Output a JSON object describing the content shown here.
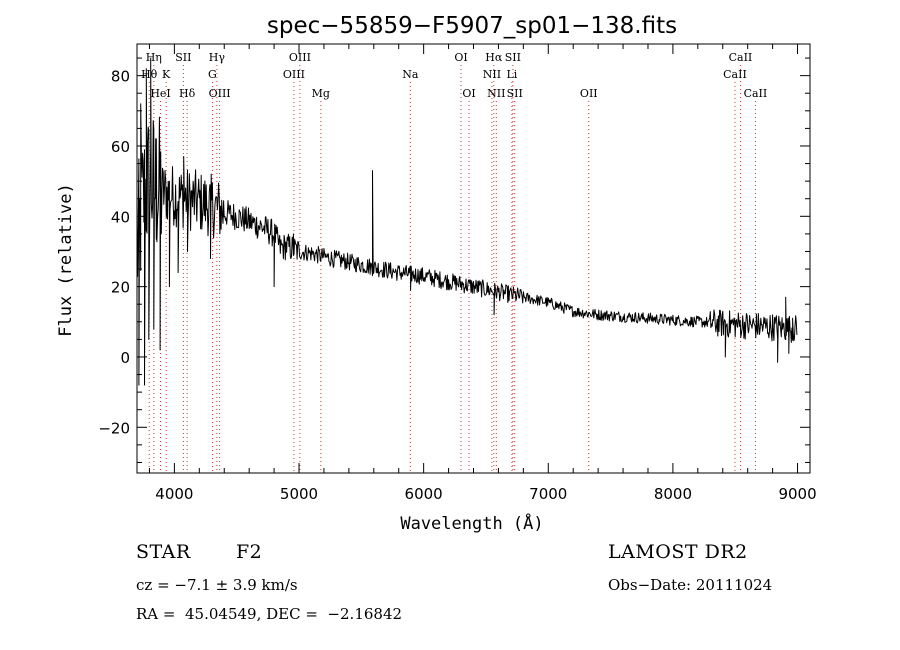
{
  "chart_data": {
    "type": "line",
    "title": "spec−55859−F5907_sp01−138.fits",
    "xlabel": "Wavelength (Å)",
    "ylabel": "Flux (relative)",
    "xlim": [
      3700,
      9100
    ],
    "ylim": [
      -33,
      89
    ],
    "xticks": [
      4000,
      5000,
      6000,
      7000,
      8000,
      9000
    ],
    "yticks": [
      -20,
      0,
      20,
      40,
      60,
      80
    ],
    "ytick_labels": [
      "−20",
      "0",
      "20",
      "40",
      "60",
      "80"
    ],
    "line_color": "#000000",
    "marker_color": "#cc3333",
    "series": [
      {
        "name": "flux",
        "anchors_x": [
          3700,
          3750,
          3800,
          3850,
          3900,
          4000,
          4100,
          4200,
          4300,
          4400,
          4500,
          4600,
          4700,
          4800,
          4850,
          4900,
          5000,
          5100,
          5200,
          5400,
          5600,
          5800,
          6000,
          6200,
          6400,
          6600,
          6800,
          7000,
          7200,
          7400,
          7600,
          7800,
          8000,
          8200,
          8400,
          8600,
          8800,
          8980
        ],
        "anchors_y": [
          30,
          45,
          50,
          48,
          47,
          46,
          45,
          44,
          43,
          41,
          40,
          38.5,
          37,
          35,
          31,
          31.5,
          30,
          29.5,
          28.5,
          27,
          25.5,
          24,
          23,
          21.5,
          20,
          18.5,
          17,
          15.5,
          13,
          12,
          11.5,
          11,
          10.5,
          10,
          9.5,
          9,
          8.5,
          8
        ],
        "features": [
          {
            "x": 3715,
            "y": -8
          },
          {
            "x": 3730,
            "y": 72
          },
          {
            "x": 3760,
            "y": -8
          },
          {
            "x": 3775,
            "y": 82
          },
          {
            "x": 3795,
            "y": 5
          },
          {
            "x": 3810,
            "y": 85
          },
          {
            "x": 3835,
            "y": 8
          },
          {
            "x": 3855,
            "y": 62
          },
          {
            "x": 3885,
            "y": 2
          },
          {
            "x": 3960,
            "y": 20
          },
          {
            "x": 4030,
            "y": 24
          },
          {
            "x": 4075,
            "y": 57
          },
          {
            "x": 4105,
            "y": 30
          },
          {
            "x": 4290,
            "y": 28
          },
          {
            "x": 4800,
            "y": 20
          },
          {
            "x": 4955,
            "y": 35
          },
          {
            "x": 5590,
            "y": 53
          },
          {
            "x": 5895,
            "y": 19
          },
          {
            "x": 6565,
            "y": 12
          },
          {
            "x": 8420,
            "y": 0
          },
          {
            "x": 8840,
            "y": -1.5
          },
          {
            "x": 8905,
            "y": 17
          },
          {
            "x": 8930,
            "y": 1
          },
          {
            "x": 8960,
            "y": 11
          }
        ]
      }
    ],
    "lines": [
      {
        "name": "Hη",
        "wl": 3835,
        "row": 0
      },
      {
        "name": "SII",
        "wl": 4072,
        "row": 0
      },
      {
        "name": "Hγ",
        "wl": 4341,
        "row": 0
      },
      {
        "name": "OIII",
        "wl": 5007,
        "row": 0
      },
      {
        "name": "OI",
        "wl": 6300,
        "row": 0
      },
      {
        "name": "Hα",
        "wl": 6563,
        "row": 0
      },
      {
        "name": "SII",
        "wl": 6716,
        "row": 0
      },
      {
        "name": "CaII",
        "wl": 8542,
        "row": 0
      },
      {
        "name": "Hθ",
        "wl": 3798,
        "row": 1
      },
      {
        "name": "K",
        "wl": 3934,
        "row": 1
      },
      {
        "name": "G",
        "wl": 4305,
        "row": 1
      },
      {
        "name": "OIII",
        "wl": 4959,
        "row": 1
      },
      {
        "name": "Na",
        "wl": 5893,
        "row": 1
      },
      {
        "name": "NII",
        "wl": 6548,
        "row": 1
      },
      {
        "name": "Li",
        "wl": 6708,
        "row": 1
      },
      {
        "name": "CaII",
        "wl": 8498,
        "row": 1
      },
      {
        "name": "HeI",
        "wl": 3889,
        "row": 2
      },
      {
        "name": "Hδ",
        "wl": 4102,
        "row": 2
      },
      {
        "name": "OIII",
        "wl": 4363,
        "row": 2
      },
      {
        "name": "Mg",
        "wl": 5175,
        "row": 2
      },
      {
        "name": "OI",
        "wl": 6364,
        "row": 2
      },
      {
        "name": "NII",
        "wl": 6583,
        "row": 2
      },
      {
        "name": "SII",
        "wl": 6731,
        "row": 2
      },
      {
        "name": "OII",
        "wl": 7325,
        "row": 2
      },
      {
        "name": "CaII",
        "wl": 8662,
        "row": 2
      }
    ]
  },
  "info": {
    "class": "STAR",
    "subclass": "F2",
    "survey": "LAMOST DR2",
    "cz": "cz = −7.1 ± 3.9 km/s",
    "obs_date": "Obs−Date: 20111024",
    "coords": "RA =  45.04549, DEC =  −2.16842"
  }
}
